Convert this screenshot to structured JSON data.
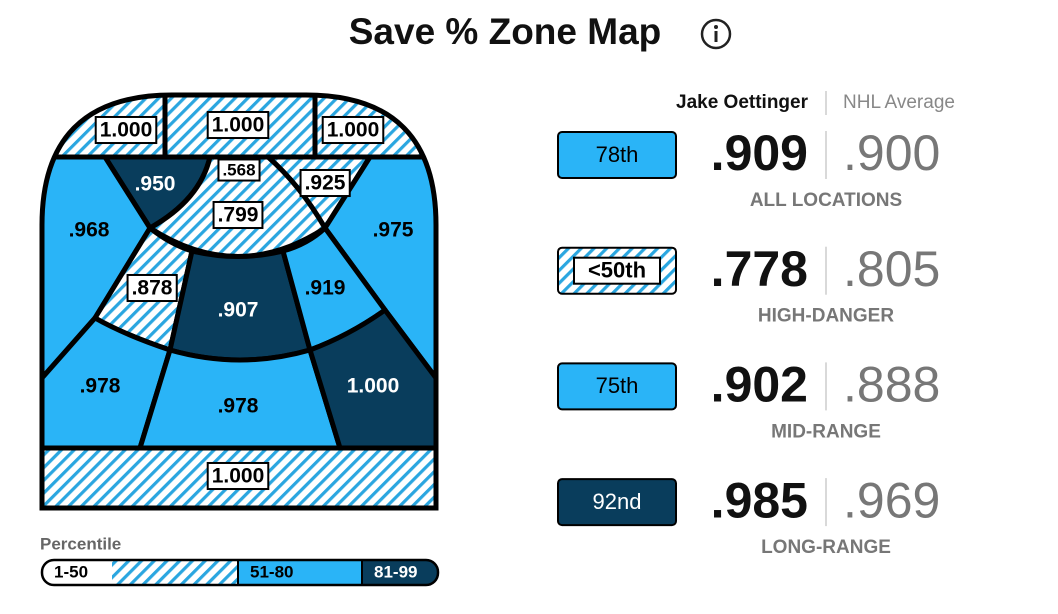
{
  "title": "Save % Zone Map",
  "tier_colors": {
    "low": "hatch",
    "mid": "#2ab4f7",
    "high": "#093d5c"
  },
  "zones": [
    {
      "label": "1.000",
      "tier": "low"
    },
    {
      "label": "1.000",
      "tier": "low"
    },
    {
      "label": "1.000",
      "tier": "low"
    },
    {
      "label": ".950",
      "tier": "high"
    },
    {
      "label": ".568",
      "tier": "low"
    },
    {
      "label": ".925",
      "tier": "low"
    },
    {
      "label": ".968",
      "tier": "mid"
    },
    {
      "label": ".799",
      "tier": "low"
    },
    {
      "label": ".975",
      "tier": "mid"
    },
    {
      "label": ".878",
      "tier": "low"
    },
    {
      "label": ".907",
      "tier": "high"
    },
    {
      "label": ".919",
      "tier": "mid"
    },
    {
      "label": ".978",
      "tier": "mid"
    },
    {
      "label": ".978",
      "tier": "mid"
    },
    {
      "label": "1.000",
      "tier": "high"
    },
    {
      "label": "1.000",
      "tier": "low"
    }
  ],
  "legend": {
    "title": "Percentile",
    "items": [
      {
        "label": "1-50",
        "tier": "low"
      },
      {
        "label": "51-80",
        "tier": "mid"
      },
      {
        "label": "81-99",
        "tier": "high"
      }
    ]
  },
  "header": {
    "player": "Jake Oettinger",
    "average": "NHL Average"
  },
  "rows": [
    {
      "percentile": "78th",
      "tier": "mid",
      "player": ".909",
      "average": ".900",
      "label": "ALL LOCATIONS"
    },
    {
      "percentile": "<50th",
      "tier": "low",
      "player": ".778",
      "average": ".805",
      "label": "HIGH-DANGER"
    },
    {
      "percentile": "75th",
      "tier": "mid",
      "player": ".902",
      "average": ".888",
      "label": "MID-RANGE"
    },
    {
      "percentile": "92nd",
      "tier": "high",
      "player": ".985",
      "average": ".969",
      "label": "LONG-RANGE"
    }
  ]
}
